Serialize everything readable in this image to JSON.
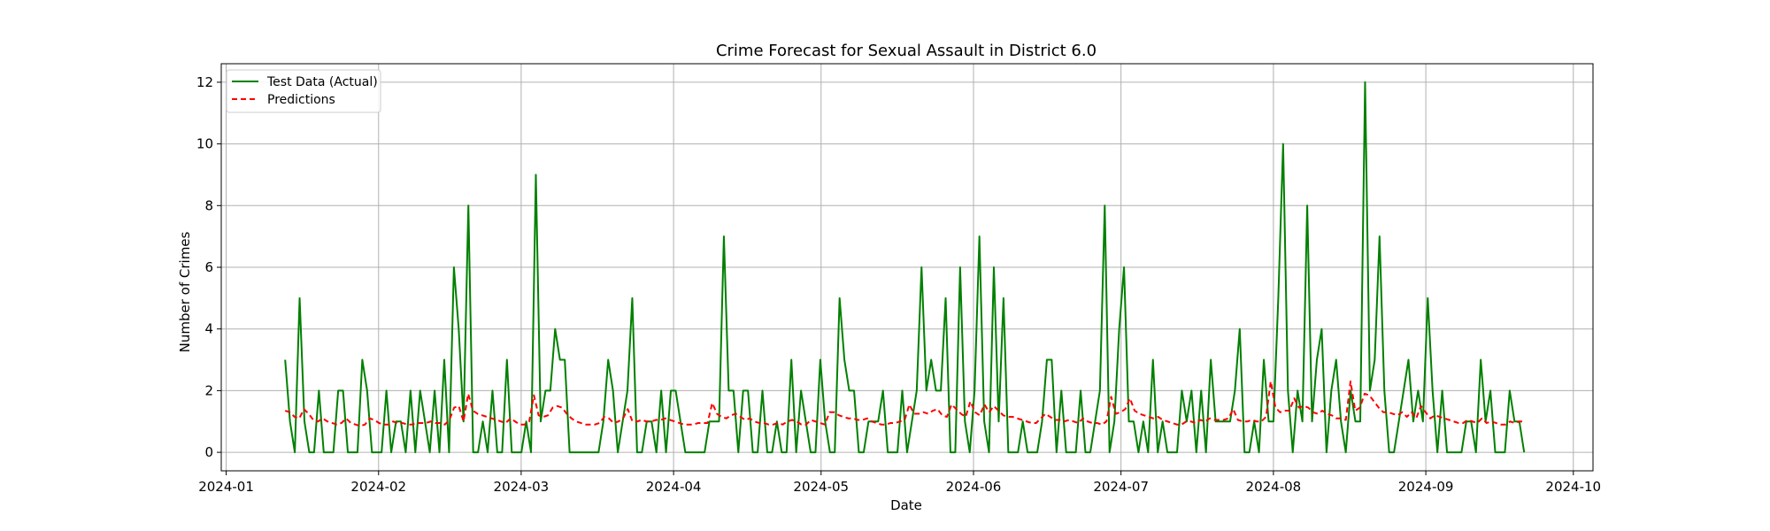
{
  "chart_data": {
    "type": "line",
    "title": "Crime Forecast for Sexual Assault in District 6.0",
    "xlabel": "Date",
    "ylabel": "Number of Crimes",
    "x_start": "2024-01-13",
    "x_end": "2024-09-21",
    "xlim": [
      "2023-12-31",
      "2024-10-05"
    ],
    "ylim": [
      -0.6,
      12.6
    ],
    "x_ticks": [
      "2024-01",
      "2024-02",
      "2024-03",
      "2024-04",
      "2024-05",
      "2024-06",
      "2024-07",
      "2024-08",
      "2024-09",
      "2024-10"
    ],
    "x_tick_dates": [
      "2024-01-01",
      "2024-02-01",
      "2024-03-01",
      "2024-04-01",
      "2024-05-01",
      "2024-06-01",
      "2024-07-01",
      "2024-08-01",
      "2024-09-01",
      "2024-10-01"
    ],
    "y_ticks": [
      0,
      2,
      4,
      6,
      8,
      10,
      12
    ],
    "grid": true,
    "legend_position": "upper-left",
    "series": [
      {
        "name": "Test Data (Actual)",
        "color": "#008000",
        "style": "solid",
        "values": [
          3,
          1,
          0,
          5,
          1,
          0,
          0,
          2,
          0,
          0,
          0,
          2,
          2,
          0,
          0,
          0,
          3,
          2,
          0,
          0,
          0,
          2,
          0,
          1,
          1,
          0,
          2,
          0,
          2,
          1,
          0,
          2,
          0,
          3,
          0,
          6,
          4,
          1,
          8,
          0,
          0,
          1,
          0,
          2,
          0,
          0,
          3,
          0,
          0,
          0,
          1,
          0,
          9,
          1,
          2,
          2,
          4,
          3,
          3,
          0,
          0,
          0,
          0,
          0,
          0,
          0,
          1,
          3,
          2,
          0,
          1,
          2,
          5,
          0,
          0,
          1,
          1,
          0,
          2,
          0,
          2,
          2,
          1,
          0,
          0,
          0,
          0,
          0,
          1,
          1,
          1,
          7,
          2,
          2,
          0,
          2,
          2,
          0,
          0,
          2,
          0,
          0,
          1,
          0,
          0,
          3,
          0,
          2,
          1,
          0,
          0,
          3,
          1,
          0,
          0,
          5,
          3,
          2,
          2,
          0,
          0,
          1,
          1,
          1,
          2,
          0,
          0,
          0,
          2,
          0,
          1,
          2,
          6,
          2,
          3,
          2,
          2,
          5,
          0,
          0,
          6,
          1,
          0,
          2,
          7,
          1,
          0,
          6,
          1,
          5,
          0,
          0,
          0,
          1,
          0,
          0,
          0,
          1,
          3,
          3,
          0,
          2,
          0,
          0,
          0,
          2,
          0,
          0,
          1,
          2,
          8,
          0,
          1,
          4,
          6,
          1,
          1,
          0,
          1,
          0,
          3,
          0,
          1,
          0,
          0,
          0,
          2,
          1,
          2,
          0,
          2,
          0,
          3,
          1,
          1,
          1,
          1,
          2,
          4,
          0,
          0,
          1,
          0,
          3,
          1,
          1,
          5,
          10,
          2,
          0,
          2,
          1,
          8,
          1,
          3,
          4,
          0,
          2,
          3,
          1,
          0,
          2,
          1,
          1,
          12,
          2,
          3,
          7,
          2,
          0,
          0,
          1,
          2,
          3,
          1,
          2,
          1,
          5,
          2,
          0,
          2,
          0,
          0,
          0,
          0,
          1,
          1,
          0,
          3,
          1,
          2,
          0,
          0,
          0,
          2,
          1,
          1,
          0
        ]
      },
      {
        "name": "Predictions",
        "color": "#ff0000",
        "style": "dashed",
        "values": [
          1.35,
          1.3,
          1.15,
          1.1,
          1.4,
          1.25,
          1.05,
          1.0,
          1.1,
          1.0,
          0.95,
          0.9,
          0.95,
          1.1,
          0.95,
          0.9,
          0.85,
          0.9,
          1.1,
          1.05,
          0.95,
          0.9,
          0.9,
          1.0,
          0.95,
          0.95,
          0.9,
          0.9,
          0.95,
          0.95,
          0.95,
          1.0,
          0.95,
          0.95,
          0.9,
          1.05,
          1.45,
          1.5,
          1.0,
          1.9,
          1.35,
          1.25,
          1.2,
          1.15,
          1.1,
          1.05,
          1.0,
          0.95,
          1.1,
          1.0,
          0.9,
          0.9,
          1.0,
          1.85,
          1.2,
          1.15,
          1.2,
          1.45,
          1.5,
          1.45,
          1.25,
          1.1,
          1.0,
          0.95,
          0.9,
          0.9,
          0.9,
          0.95,
          1.15,
          1.1,
          0.95,
          1.0,
          1.1,
          1.4,
          1.0,
          1.0,
          1.05,
          1.0,
          1.0,
          1.05,
          1.05,
          1.1,
          1.05,
          1.0,
          0.95,
          0.9,
          0.9,
          0.9,
          0.95,
          0.95,
          0.95,
          1.6,
          1.25,
          1.15,
          1.1,
          1.2,
          1.25,
          1.15,
          1.05,
          1.1,
          1.0,
          0.95,
          0.95,
          0.9,
          0.9,
          0.95,
          0.9,
          1.0,
          1.05,
          1.0,
          0.9,
          0.9,
          1.05,
          1.0,
          0.95,
          0.9,
          1.3,
          1.3,
          1.2,
          1.15,
          1.1,
          1.1,
          1.05,
          1.05,
          1.1,
          1.0,
          0.95,
          0.9,
          0.9,
          0.95,
          0.95,
          1.0,
          1.05,
          1.55,
          1.25,
          1.25,
          1.3,
          1.25,
          1.35,
          1.4,
          1.2,
          1.15,
          1.55,
          1.4,
          1.25,
          1.15,
          1.65,
          1.3,
          1.2,
          1.55,
          1.3,
          1.5,
          1.35,
          1.2,
          1.15,
          1.15,
          1.1,
          1.05,
          1.0,
          0.95,
          0.95,
          1.1,
          1.25,
          1.15,
          1.05,
          1.05,
          1.0,
          1.05,
          1.0,
          0.95,
          1.1,
          1.0,
          0.95,
          0.95,
          0.9,
          1.0,
          1.8,
          1.25,
          1.3,
          1.4,
          1.75,
          1.35,
          1.25,
          1.2,
          1.15,
          1.1,
          1.15,
          1.05,
          1.0,
          0.95,
          0.9,
          0.9,
          1.0,
          1.0,
          0.95,
          1.05,
          1.0,
          1.1,
          1.05,
          1.05,
          1.05,
          1.1,
          1.4,
          1.05,
          1.0,
          1.0,
          1.05,
          1.0,
          1.0,
          1.15,
          2.3,
          1.45,
          1.3,
          1.35,
          1.35,
          1.75,
          1.45,
          1.5,
          1.45,
          1.3,
          1.25,
          1.35,
          1.25,
          1.2,
          1.1,
          1.1,
          1.05,
          2.3,
          1.35,
          1.45,
          1.9,
          1.85,
          1.65,
          1.45,
          1.3,
          1.3,
          1.25,
          1.2,
          1.3,
          1.15,
          1.3,
          1.1,
          1.5,
          1.3,
          1.1,
          1.2,
          1.15,
          1.1,
          1.05,
          1.0,
          0.95,
          0.95,
          1.05,
          1.0,
          0.95,
          1.1,
          0.95,
          1.0,
          0.95,
          0.9,
          0.9,
          1.0,
          0.95,
          1.0,
          1.0
        ]
      }
    ]
  }
}
